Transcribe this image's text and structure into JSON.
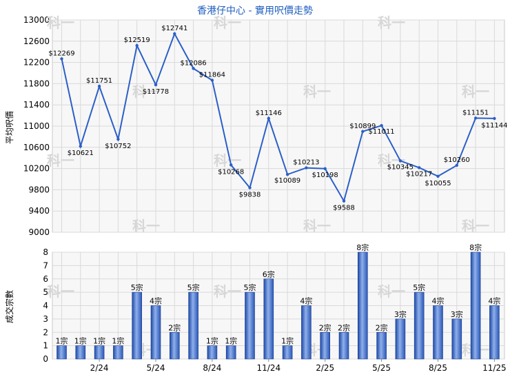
{
  "chart_data": [
    {
      "type": "line",
      "title": "香港仔中心 - 實用呎價走勢",
      "ylabel": "平均呎價",
      "ylim": [
        9000,
        13000
      ],
      "yticks": [
        9000,
        9400,
        9800,
        10200,
        10600,
        11000,
        11400,
        11800,
        12200,
        12600,
        13000
      ],
      "series": [
        {
          "values": [
            12269,
            10621,
            11751,
            10752,
            12519,
            11778,
            12741,
            12086,
            11864,
            10268,
            9838,
            11146,
            10089,
            10213,
            10198,
            9588,
            10899,
            11011,
            10345,
            10217,
            10055,
            10260,
            11151,
            11144
          ],
          "labels": [
            "$12269",
            "$10621",
            "$11751",
            "$10752",
            "$12519",
            "$11778",
            "$12741",
            "$12086",
            "$11864",
            "$10268",
            "$9838",
            "$11146",
            "$10089",
            "$10213",
            "$10198",
            "$9588",
            "$10899",
            "$11011",
            "$10345",
            "$10217",
            "$10055",
            "$10260",
            "$11151",
            "$11144"
          ],
          "color": "#2a5fc8"
        }
      ],
      "grid": true,
      "watermark": "科一"
    },
    {
      "type": "bar",
      "ylabel": "成交宗數",
      "ylim": [
        0,
        8
      ],
      "yticks": [
        0,
        1,
        2,
        3,
        4,
        5,
        6,
        7,
        8
      ],
      "xticks": [
        {
          "index": 2,
          "label": "2/24"
        },
        {
          "index": 5,
          "label": "5/24"
        },
        {
          "index": 8,
          "label": "8/24"
        },
        {
          "index": 11,
          "label": "11/24"
        },
        {
          "index": 14,
          "label": "2/25"
        },
        {
          "index": 17,
          "label": "5/25"
        },
        {
          "index": 20,
          "label": "8/25"
        },
        {
          "index": 23,
          "label": "11/25"
        }
      ],
      "values": [
        1,
        1,
        1,
        1,
        5,
        4,
        2,
        5,
        1,
        1,
        5,
        6,
        1,
        4,
        2,
        2,
        8,
        2,
        3,
        5,
        4,
        3,
        8,
        4
      ],
      "labels": [
        "1宗",
        "1宗",
        "1宗",
        "1宗",
        "5宗",
        "4宗",
        "2宗",
        "5宗",
        "1宗",
        "1宗",
        "5宗",
        "6宗",
        "1宗",
        "4宗",
        "2宗",
        "2宗",
        "8宗",
        "2宗",
        "3宗",
        "5宗",
        "4宗",
        "3宗",
        "8宗",
        "4宗"
      ],
      "color": "#2f5fc4",
      "grid": true,
      "watermark": "科一"
    }
  ]
}
